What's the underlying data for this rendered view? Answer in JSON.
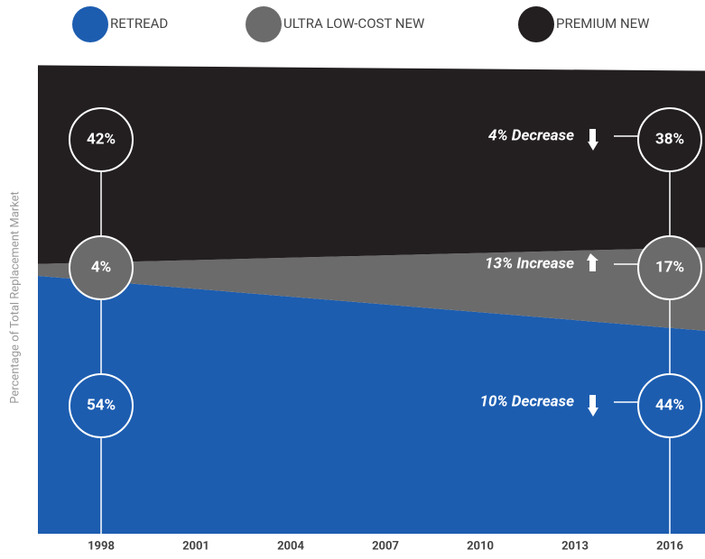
{
  "chart_data": {
    "type": "stacked_area",
    "y_axis_label": "Percentage of Total Replacement Market",
    "x": [
      1998,
      2016
    ],
    "xticks": [
      1998,
      2001,
      2004,
      2007,
      2010,
      2013,
      2016
    ],
    "ylim": [
      0,
      100
    ],
    "series": [
      {
        "name": "RETREAD",
        "color": "#1c5db0",
        "values": [
          54,
          44
        ],
        "value_labels": [
          "54%",
          "44%"
        ],
        "annotation": "10% Decrease"
      },
      {
        "name": "ULTRA LOW-COST NEW",
        "color": "#6b6b6b",
        "values": [
          4,
          17
        ],
        "value_labels": [
          "4%",
          "17%"
        ],
        "annotation": "13% Increase"
      },
      {
        "name": "PREMIUM NEW",
        "color": "#231f20",
        "values": [
          42,
          38
        ],
        "value_labels": [
          "42%",
          "38%"
        ],
        "annotation": "4% Decrease"
      }
    ]
  }
}
